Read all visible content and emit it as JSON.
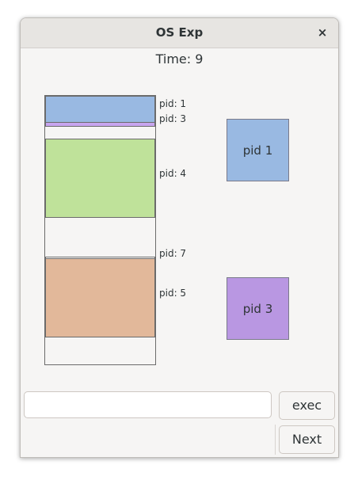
{
  "window": {
    "title": "OS Exp",
    "close_glyph": "×"
  },
  "time_label": "Time: 9",
  "memory": {
    "segments": [
      {
        "pid_label": "pid: 1",
        "color": "#99b9e2"
      },
      {
        "pid_label": "pid: 3",
        "color": "#c8a5ef"
      },
      {
        "pid_label": "pid: 4",
        "color": "#bfe29a"
      },
      {
        "pid_label": "pid: 7",
        "color": "#ffffff"
      },
      {
        "pid_label": "pid: 5",
        "color": "#e2b89a"
      }
    ]
  },
  "processes": [
    {
      "label": "pid 1",
      "color": "#99b9e2"
    },
    {
      "label": "pid 3",
      "color": "#b997e2"
    }
  ],
  "command_input": {
    "value": "",
    "placeholder": ""
  },
  "buttons": {
    "exec_label": "exec",
    "next_label": "Next"
  }
}
